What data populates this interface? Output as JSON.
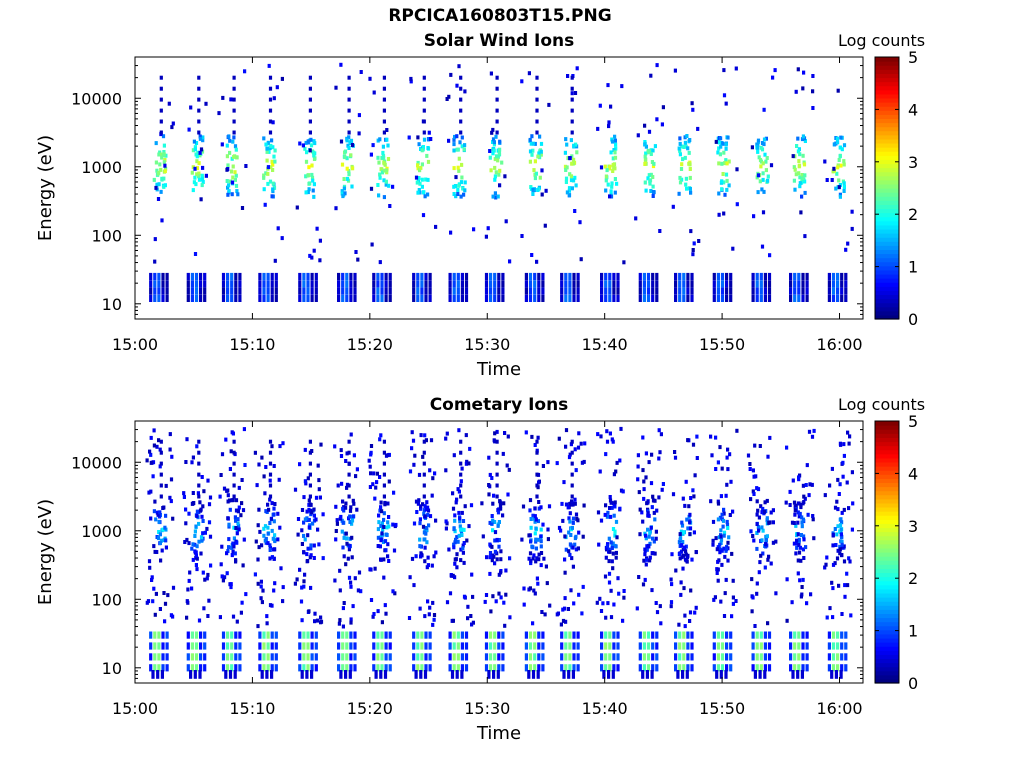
{
  "figure": {
    "title": "RPCICA160803T15.PNG"
  },
  "colorbar": {
    "label": "Log counts",
    "min": 0,
    "max": 5,
    "ticks": [
      "0",
      "1",
      "2",
      "3",
      "4",
      "5"
    ],
    "colormap": "jet"
  },
  "chart_data": [
    {
      "type": "heatmap",
      "title": "Solar Wind Ions",
      "xlabel": "Time",
      "ylabel": "Energy (eV)",
      "y_scale": "log",
      "ylim": [
        6,
        40000
      ],
      "xlim": [
        "15:00",
        "16:02"
      ],
      "x_ticks": [
        "15:00",
        "15:10",
        "15:20",
        "15:30",
        "15:40",
        "15:50",
        "16:00"
      ],
      "y_ticks": [
        "10",
        "100",
        "1000",
        "10000"
      ],
      "grid": false,
      "colorbar_label": "Log counts",
      "scan_times_min": [
        2,
        5.2,
        8.2,
        11.3,
        14.7,
        18.0,
        21.0,
        24.4,
        27.5,
        30.6,
        34.0,
        37.0,
        40.4,
        43.7,
        46.7,
        50.0,
        53.3,
        56.5,
        59.8
      ],
      "peak_energy_eV": 1000,
      "peak_log_counts": 3.2,
      "low_energy_band_eV": [
        12,
        25
      ],
      "low_energy_log_counts": 1.2
    },
    {
      "type": "heatmap",
      "title": "Cometary Ions",
      "xlabel": "Time",
      "ylabel": "Energy (eV)",
      "y_scale": "log",
      "ylim": [
        6,
        40000
      ],
      "xlim": [
        "15:00",
        "16:02"
      ],
      "x_ticks": [
        "15:00",
        "15:10",
        "15:20",
        "15:30",
        "15:40",
        "15:50",
        "16:00"
      ],
      "y_ticks": [
        "10",
        "100",
        "1000",
        "10000"
      ],
      "grid": false,
      "colorbar_label": "Log counts",
      "scan_times_min": [
        2,
        5.2,
        8.2,
        11.3,
        14.7,
        18.0,
        21.0,
        24.4,
        27.5,
        30.6,
        34.0,
        37.0,
        40.4,
        43.7,
        46.7,
        50.0,
        53.3,
        56.5,
        59.8
      ],
      "peak_energy_eV": 1000,
      "peak_log_counts": 2.0,
      "low_energy_band_eV": [
        10,
        30
      ],
      "low_energy_log_counts": 2.6
    }
  ]
}
